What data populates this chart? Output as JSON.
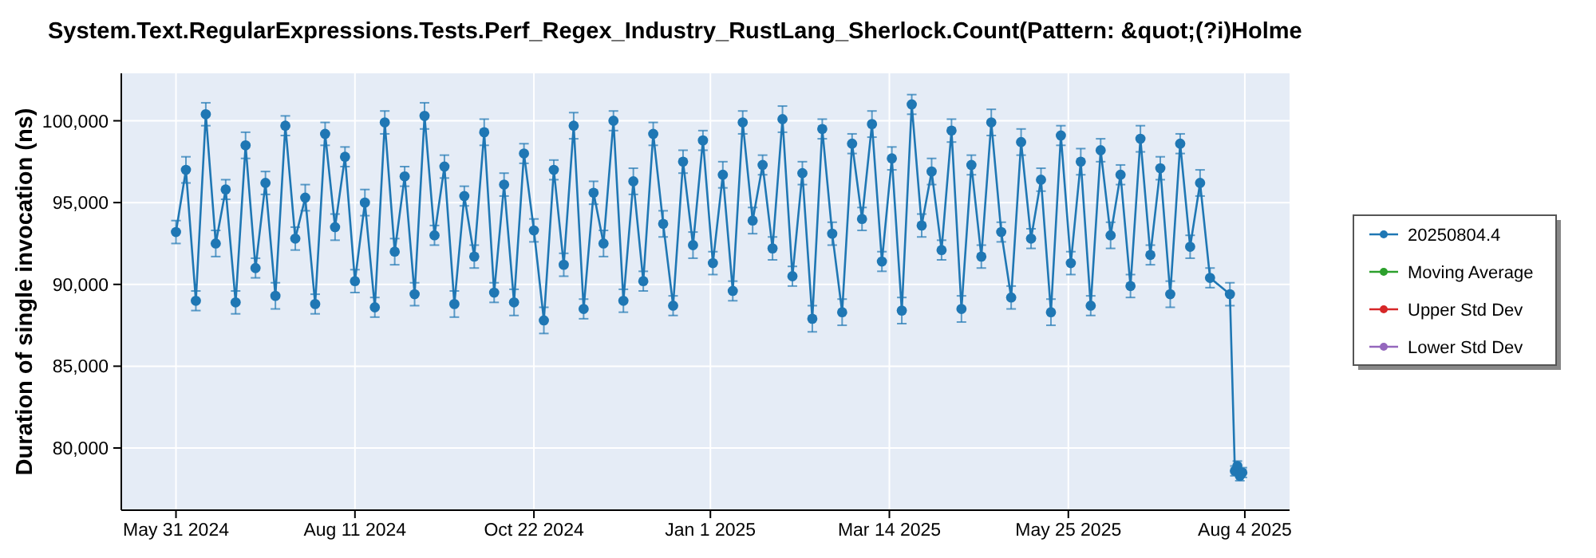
{
  "chart_data": {
    "type": "line",
    "title": "System.Text.RegularExpressions.Tests.Perf_Regex_Industry_RustLang_Sherlock.Count(Pattern: &quot;(?i)Holme",
    "ylabel": "Duration of single invocation (ns)",
    "x": [
      "2024-05-31",
      "2024-06-04",
      "2024-06-08",
      "2024-06-12",
      "2024-06-16",
      "2024-06-20",
      "2024-06-24",
      "2024-06-28",
      "2024-07-02",
      "2024-07-06",
      "2024-07-10",
      "2024-07-14",
      "2024-07-18",
      "2024-07-22",
      "2024-07-26",
      "2024-07-30",
      "2024-08-03",
      "2024-08-07",
      "2024-08-11",
      "2024-08-15",
      "2024-08-19",
      "2024-08-23",
      "2024-08-27",
      "2024-08-31",
      "2024-09-04",
      "2024-09-08",
      "2024-09-12",
      "2024-09-16",
      "2024-09-20",
      "2024-09-24",
      "2024-09-28",
      "2024-10-02",
      "2024-10-06",
      "2024-10-10",
      "2024-10-14",
      "2024-10-18",
      "2024-10-22",
      "2024-10-26",
      "2024-10-30",
      "2024-11-03",
      "2024-11-07",
      "2024-11-11",
      "2024-11-15",
      "2024-11-19",
      "2024-11-23",
      "2024-11-27",
      "2024-12-01",
      "2024-12-05",
      "2024-12-09",
      "2024-12-13",
      "2024-12-17",
      "2024-12-21",
      "2024-12-25",
      "2024-12-29",
      "2025-01-02",
      "2025-01-06",
      "2025-01-10",
      "2025-01-14",
      "2025-01-18",
      "2025-01-22",
      "2025-01-26",
      "2025-01-30",
      "2025-02-03",
      "2025-02-07",
      "2025-02-11",
      "2025-02-15",
      "2025-02-19",
      "2025-02-23",
      "2025-02-27",
      "2025-03-03",
      "2025-03-07",
      "2025-03-11",
      "2025-03-15",
      "2025-03-19",
      "2025-03-23",
      "2025-03-27",
      "2025-03-31",
      "2025-04-04",
      "2025-04-08",
      "2025-04-12",
      "2025-04-16",
      "2025-04-20",
      "2025-04-24",
      "2025-04-28",
      "2025-05-02",
      "2025-05-06",
      "2025-05-10",
      "2025-05-14",
      "2025-05-18",
      "2025-05-22",
      "2025-05-26",
      "2025-05-30",
      "2025-06-03",
      "2025-06-07",
      "2025-06-11",
      "2025-06-15",
      "2025-06-19",
      "2025-06-23",
      "2025-06-27",
      "2025-07-01",
      "2025-07-05",
      "2025-07-09",
      "2025-07-13",
      "2025-07-17",
      "2025-07-21",
      "2025-07-29",
      "2025-07-31",
      "2025-08-01",
      "2025-08-02",
      "2025-08-03"
    ],
    "series": [
      {
        "name": "20250804.4",
        "color": "#1f77b4",
        "values": [
          93200,
          97000,
          89000,
          100400,
          92500,
          95800,
          88900,
          98500,
          91000,
          96200,
          89300,
          99700,
          92800,
          95300,
          88800,
          99200,
          93500,
          97800,
          90200,
          95000,
          88600,
          99900,
          92000,
          96600,
          89400,
          100300,
          93000,
          97200,
          88800,
          95400,
          91700,
          99300,
          89500,
          96100,
          88900,
          98000,
          93300,
          87800,
          97000,
          91200,
          99700,
          88500,
          95600,
          92500,
          100000,
          89000,
          96300,
          90200,
          99200,
          93700,
          88700,
          97500,
          92400,
          98800,
          91300,
          96700,
          89600,
          99900,
          93900,
          97300,
          92200,
          100100,
          90500,
          96800,
          87900,
          99500,
          93100,
          88300,
          98600,
          94000,
          99800,
          91400,
          97700,
          88400,
          101000,
          93600,
          96900,
          92100,
          99400,
          88500,
          97300,
          91700,
          99900,
          93200,
          89200,
          98700,
          92800,
          96400,
          88300,
          99100,
          91300,
          97500,
          88700,
          98200,
          93000,
          96700,
          89900,
          98900,
          91800,
          97100,
          89400,
          98600,
          92300,
          96200,
          90400,
          89400,
          78600,
          78900,
          78300,
          78500
        ],
        "errors": [
          700,
          800,
          600,
          700,
          800,
          600,
          700,
          800,
          600,
          700,
          800,
          600,
          700,
          800,
          600,
          700,
          800,
          600,
          700,
          800,
          600,
          700,
          800,
          600,
          700,
          800,
          600,
          700,
          800,
          600,
          700,
          800,
          600,
          700,
          800,
          600,
          700,
          800,
          600,
          700,
          800,
          600,
          700,
          800,
          600,
          700,
          800,
          600,
          700,
          800,
          600,
          700,
          800,
          600,
          700,
          800,
          600,
          700,
          800,
          600,
          700,
          800,
          600,
          700,
          800,
          600,
          700,
          800,
          600,
          700,
          800,
          600,
          700,
          800,
          600,
          700,
          800,
          600,
          700,
          800,
          600,
          700,
          800,
          600,
          700,
          800,
          600,
          700,
          800,
          600,
          700,
          800,
          600,
          700,
          800,
          600,
          700,
          800,
          600,
          700,
          800,
          600,
          700,
          800,
          600,
          700,
          300,
          300,
          300,
          300
        ]
      },
      {
        "name": "Moving Average",
        "color": "#2ca02c",
        "values": [
          null,
          null,
          null,
          null,
          null,
          null,
          null,
          null,
          null,
          null,
          null,
          null,
          null,
          null,
          null,
          null,
          null,
          null,
          null,
          null,
          null,
          null,
          null,
          null,
          null,
          null,
          null,
          null,
          null,
          null,
          null,
          null,
          null,
          null,
          null,
          null,
          null,
          null,
          null,
          null,
          null,
          null,
          null,
          null,
          null,
          null,
          null,
          null,
          null,
          null,
          null,
          null,
          null,
          null,
          null,
          null,
          null,
          null,
          null,
          null,
          null,
          null,
          null,
          null,
          null,
          null,
          null,
          null,
          null,
          null,
          null,
          null,
          null,
          null,
          null,
          null,
          null,
          null,
          null,
          null,
          null,
          null,
          null,
          null,
          null,
          null,
          null,
          null,
          null,
          null,
          null,
          null,
          null,
          null,
          null,
          null,
          null,
          null,
          null,
          null,
          null,
          null,
          null,
          null,
          null,
          null,
          null,
          null,
          null,
          null
        ]
      },
      {
        "name": "Upper Std Dev",
        "color": "#d62728",
        "values": [
          null,
          null,
          null,
          null,
          null,
          null,
          null,
          null,
          null,
          null,
          null,
          null,
          null,
          null,
          null,
          null,
          null,
          null,
          null,
          null,
          null,
          null,
          null,
          null,
          null,
          null,
          null,
          null,
          null,
          null,
          null,
          null,
          null,
          null,
          null,
          null,
          null,
          null,
          null,
          null,
          null,
          null,
          null,
          null,
          null,
          null,
          null,
          null,
          null,
          null,
          null,
          null,
          null,
          null,
          null,
          null,
          null,
          null,
          null,
          null,
          null,
          null,
          null,
          null,
          null,
          null,
          null,
          null,
          null,
          null,
          null,
          null,
          null,
          null,
          null,
          null,
          null,
          null,
          null,
          null,
          null,
          null,
          null,
          null,
          null,
          null,
          null,
          null,
          null,
          null,
          null,
          null,
          null,
          null,
          null,
          null,
          null,
          null,
          null,
          null,
          null,
          null,
          null,
          null,
          null,
          null,
          null,
          null,
          null,
          null
        ]
      },
      {
        "name": "Lower Std Dev",
        "color": "#9467bd",
        "values": [
          null,
          null,
          null,
          null,
          null,
          null,
          null,
          null,
          null,
          null,
          null,
          null,
          null,
          null,
          null,
          null,
          null,
          null,
          null,
          null,
          null,
          null,
          null,
          null,
          null,
          null,
          null,
          null,
          null,
          null,
          null,
          null,
          null,
          null,
          null,
          null,
          null,
          null,
          null,
          null,
          null,
          null,
          null,
          null,
          null,
          null,
          null,
          null,
          null,
          null,
          null,
          null,
          null,
          null,
          null,
          null,
          null,
          null,
          null,
          null,
          null,
          null,
          null,
          null,
          null,
          null,
          null,
          null,
          null,
          null,
          null,
          null,
          null,
          null,
          null,
          null,
          null,
          null,
          null,
          null,
          null,
          null,
          null,
          null,
          null,
          null,
          null,
          null,
          null,
          null,
          null,
          null,
          null,
          null,
          null,
          null,
          null,
          null,
          null,
          null,
          null,
          null,
          null,
          null,
          null,
          null,
          null,
          null,
          null,
          null
        ]
      }
    ],
    "xlim": [
      "2024-05-09",
      "2025-08-22"
    ],
    "xticks": [
      {
        "value": "2024-05-31",
        "label": "May 31 2024"
      },
      {
        "value": "2024-08-11",
        "label": "Aug 11 2024"
      },
      {
        "value": "2024-10-22",
        "label": "Oct 22 2024"
      },
      {
        "value": "2025-01-01",
        "label": "Jan 1 2025"
      },
      {
        "value": "2025-03-14",
        "label": "Mar 14 2025"
      },
      {
        "value": "2025-05-25",
        "label": "May 25 2025"
      },
      {
        "value": "2025-08-04",
        "label": "Aug 4 2025"
      }
    ],
    "ylim": [
      76200,
      102900
    ],
    "yticks": [
      {
        "value": 80000,
        "label": "80,000"
      },
      {
        "value": 85000,
        "label": "85,000"
      },
      {
        "value": 90000,
        "label": "90,000"
      },
      {
        "value": 95000,
        "label": "95,000"
      },
      {
        "value": 100000,
        "label": "100,000"
      }
    ],
    "grid": true,
    "legend": "right",
    "marker": "circle",
    "line_style": "solid"
  }
}
